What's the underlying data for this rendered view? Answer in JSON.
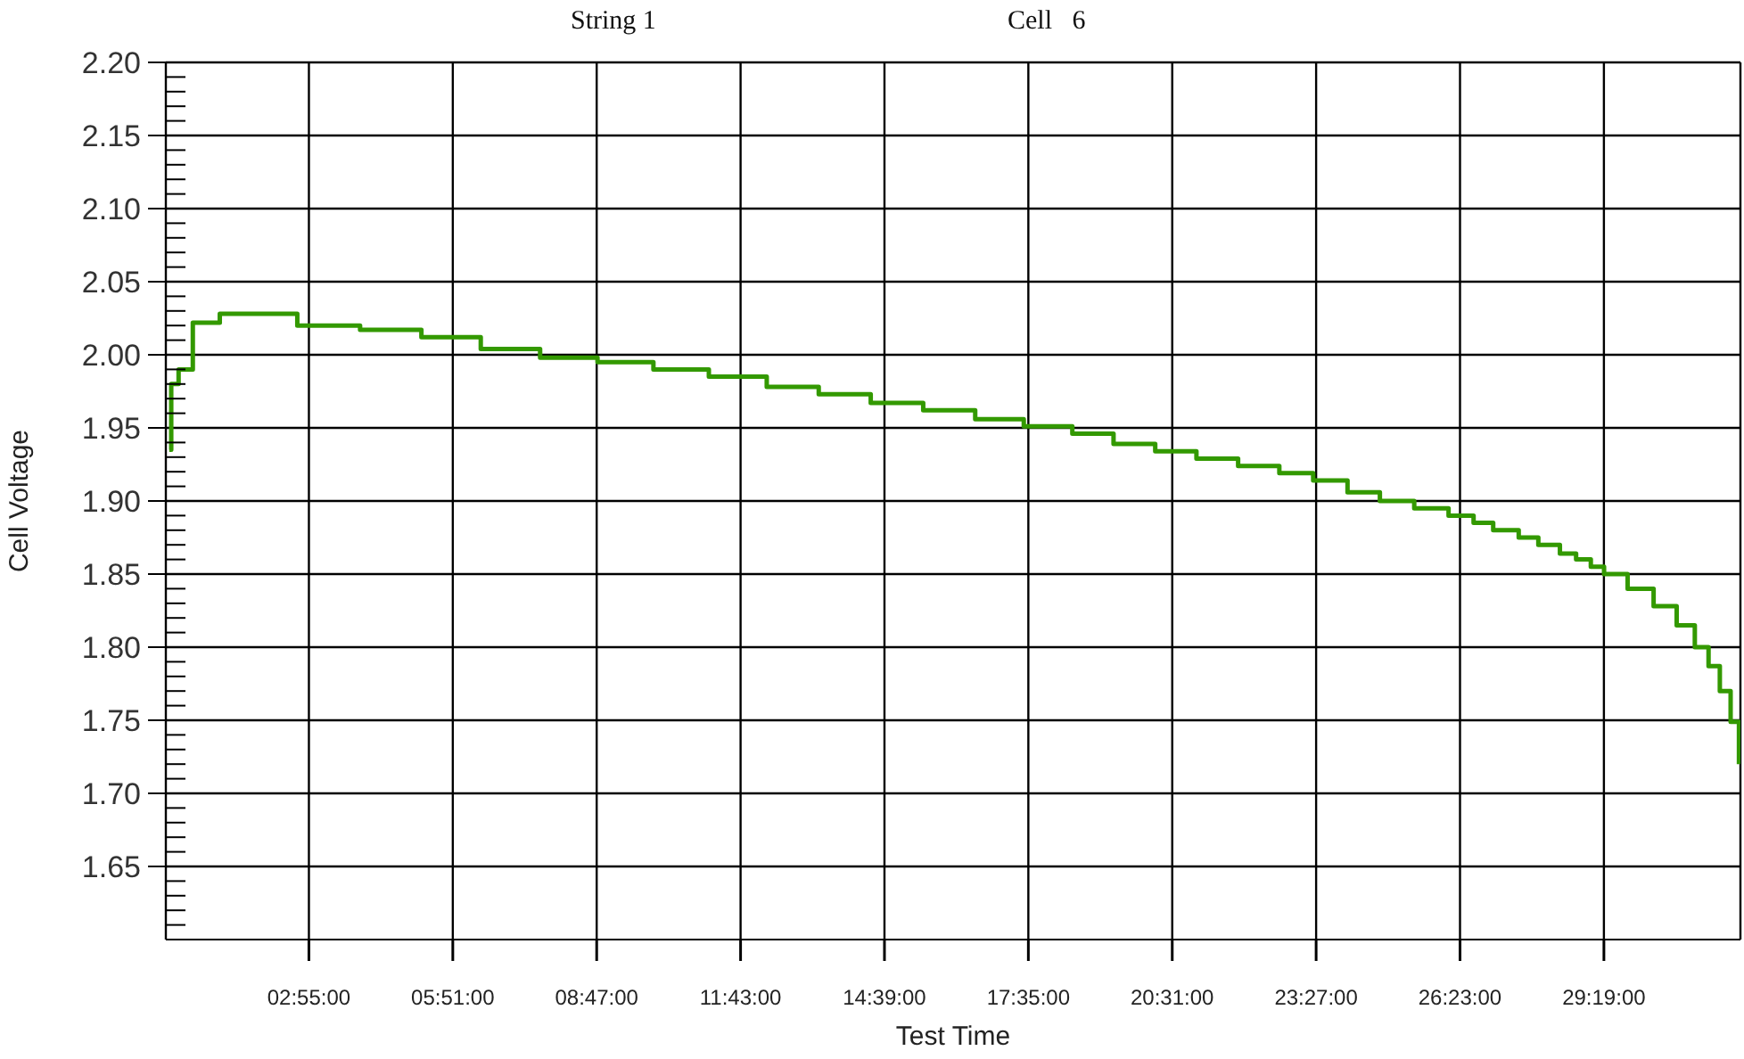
{
  "chart_data": {
    "type": "step",
    "title": "String 1",
    "subtitle": "Cell   6",
    "xlabel": "Test Time",
    "ylabel": "Cell Voltage",
    "x": [
      0.07,
      0.11,
      0.26,
      0.55,
      1.1,
      2.68,
      3.96,
      5.21,
      6.42,
      7.63,
      8.8,
      9.94,
      11.07,
      12.25,
      13.31,
      14.37,
      15.44,
      16.5,
      17.49,
      18.48,
      19.32,
      20.17,
      21.01,
      21.86,
      22.7,
      23.39,
      24.09,
      24.75,
      25.45,
      26.15,
      26.66,
      27.06,
      27.58,
      27.98,
      28.42,
      28.75,
      29.05,
      29.32,
      29.8,
      30.33,
      30.8,
      31.17,
      31.45,
      31.68,
      31.9,
      32.07
    ],
    "series": [
      {
        "color": "#339900",
        "values": [
          1.935,
          1.98,
          1.99,
          2.022,
          2.028,
          2.02,
          2.017,
          2.012,
          2.004,
          1.998,
          1.995,
          1.99,
          1.985,
          1.978,
          1.973,
          1.967,
          1.962,
          1.956,
          1.951,
          1.946,
          1.939,
          1.934,
          1.929,
          1.924,
          1.919,
          1.914,
          1.906,
          1.9,
          1.895,
          1.89,
          1.885,
          1.88,
          1.875,
          1.87,
          1.864,
          1.86,
          1.855,
          1.85,
          1.84,
          1.828,
          1.815,
          1.8,
          1.787,
          1.77,
          1.749,
          1.72
        ]
      }
    ],
    "xlim": [
      0,
      32.1
    ],
    "xticks": [
      {
        "value": 2.9167,
        "label": "02:55:00"
      },
      {
        "value": 5.85,
        "label": "05:51:00"
      },
      {
        "value": 8.7833,
        "label": "08:47:00"
      },
      {
        "value": 11.7167,
        "label": "11:43:00"
      },
      {
        "value": 14.65,
        "label": "14:39:00"
      },
      {
        "value": 17.5833,
        "label": "17:35:00"
      },
      {
        "value": 20.5167,
        "label": "20:31:00"
      },
      {
        "value": 23.45,
        "label": "23:27:00"
      },
      {
        "value": 26.3833,
        "label": "26:23:00"
      },
      {
        "value": 29.3167,
        "label": "29:19:00"
      }
    ],
    "ylim": [
      1.6,
      2.2
    ],
    "yticks": [
      {
        "value": 1.61,
        "label": null
      },
      {
        "value": 1.62,
        "label": null
      },
      {
        "value": 1.63,
        "label": null
      },
      {
        "value": 1.64,
        "label": null
      },
      {
        "value": 1.65,
        "label": "1.65"
      },
      {
        "value": 1.66,
        "label": null
      },
      {
        "value": 1.67,
        "label": null
      },
      {
        "value": 1.68,
        "label": null
      },
      {
        "value": 1.69,
        "label": null
      },
      {
        "value": 1.7,
        "label": "1.70"
      },
      {
        "value": 1.71,
        "label": null
      },
      {
        "value": 1.72,
        "label": null
      },
      {
        "value": 1.73,
        "label": null
      },
      {
        "value": 1.74,
        "label": null
      },
      {
        "value": 1.75,
        "label": "1.75"
      },
      {
        "value": 1.76,
        "label": null
      },
      {
        "value": 1.77,
        "label": null
      },
      {
        "value": 1.78,
        "label": null
      },
      {
        "value": 1.79,
        "label": null
      },
      {
        "value": 1.8,
        "label": "1.80"
      },
      {
        "value": 1.81,
        "label": null
      },
      {
        "value": 1.82,
        "label": null
      },
      {
        "value": 1.83,
        "label": null
      },
      {
        "value": 1.84,
        "label": null
      },
      {
        "value": 1.85,
        "label": "1.85"
      },
      {
        "value": 1.86,
        "label": null
      },
      {
        "value": 1.87,
        "label": null
      },
      {
        "value": 1.88,
        "label": null
      },
      {
        "value": 1.89,
        "label": null
      },
      {
        "value": 1.9,
        "label": "1.90"
      },
      {
        "value": 1.91,
        "label": null
      },
      {
        "value": 1.92,
        "label": null
      },
      {
        "value": 1.93,
        "label": null
      },
      {
        "value": 1.94,
        "label": null
      },
      {
        "value": 1.95,
        "label": "1.95"
      },
      {
        "value": 1.96,
        "label": null
      },
      {
        "value": 1.97,
        "label": null
      },
      {
        "value": 1.98,
        "label": null
      },
      {
        "value": 1.99,
        "label": null
      },
      {
        "value": 2.0,
        "label": "2.00"
      },
      {
        "value": 2.01,
        "label": null
      },
      {
        "value": 2.02,
        "label": null
      },
      {
        "value": 2.03,
        "label": null
      },
      {
        "value": 2.04,
        "label": null
      },
      {
        "value": 2.05,
        "label": "2.05"
      },
      {
        "value": 2.06,
        "label": null
      },
      {
        "value": 2.07,
        "label": null
      },
      {
        "value": 2.08,
        "label": null
      },
      {
        "value": 2.09,
        "label": null
      },
      {
        "value": 2.1,
        "label": "2.10"
      },
      {
        "value": 2.11,
        "label": null
      },
      {
        "value": 2.12,
        "label": null
      },
      {
        "value": 2.13,
        "label": null
      },
      {
        "value": 2.14,
        "label": null
      },
      {
        "value": 2.15,
        "label": "2.15"
      },
      {
        "value": 2.16,
        "label": null
      },
      {
        "value": 2.17,
        "label": null
      },
      {
        "value": 2.18,
        "label": null
      },
      {
        "value": 2.19,
        "label": null
      },
      {
        "value": 2.2,
        "label": "2.20"
      }
    ],
    "grid": true,
    "legend": false,
    "marker": "none",
    "line_style": "solid"
  }
}
